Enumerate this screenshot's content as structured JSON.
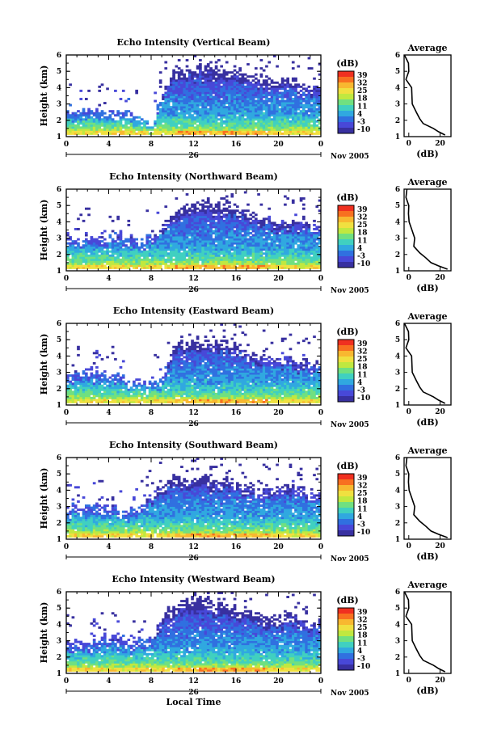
{
  "chart_data": {
    "type": "heatmap",
    "xlabel": "Local Time",
    "x_ticks": [
      "0",
      "4",
      "8",
      "12",
      "16",
      "20",
      "0"
    ],
    "date_label": "26",
    "month_year_label": "Nov 2005",
    "ylabel": "Height (km)",
    "y_ticks": [
      "1",
      "2",
      "3",
      "4",
      "5",
      "6"
    ],
    "xlim_hours": [
      0,
      24
    ],
    "ylim_km": [
      1,
      6
    ],
    "colorbar": {
      "label": "(dB)",
      "ticks": [
        "39",
        "32",
        "25",
        "18",
        "11",
        "4",
        "-3",
        "-10"
      ],
      "colors": [
        "#f03020",
        "#f87020",
        "#f8b830",
        "#f0e040",
        "#c0e840",
        "#70e080",
        "#40d0c0",
        "#30a8e0",
        "#3070e0",
        "#4848d8",
        "#3830a0"
      ]
    },
    "average_profile": {
      "title": "Average",
      "xlabel": "(dB)",
      "x_ticks": [
        "0",
        "20"
      ],
      "y_ticks": [
        "1",
        "2",
        "3",
        "4",
        "5",
        "6"
      ],
      "heights_km": [
        1.1,
        1.3,
        1.5,
        1.8,
        2.1,
        2.5,
        3.0,
        3.5,
        4.0,
        4.5,
        5.0,
        5.5,
        6.0
      ],
      "values_db": [
        24,
        19,
        15,
        10,
        7,
        4,
        3,
        2,
        1,
        -1,
        0,
        -1,
        -2
      ]
    },
    "panels": [
      {
        "title": "Echo Intensity (Vertical Beam)",
        "echo_top_km": [
          2.6,
          2.5,
          2.8,
          2.7,
          2.5,
          2.6,
          2.4,
          2.1,
          1.6,
          4.0,
          5.2,
          5.3,
          5.4,
          5.6,
          5.3,
          5.2,
          5.2,
          5.0,
          4.6,
          4.4,
          4.4,
          4.5,
          4.3,
          4.2
        ]
      },
      {
        "title": "Echo Intensity (Northward Beam)",
        "echo_top_km": [
          3.0,
          3.1,
          3.2,
          3.1,
          3.2,
          3.3,
          3.0,
          2.9,
          3.4,
          3.9,
          4.6,
          5.0,
          5.2,
          5.2,
          5.1,
          5.0,
          5.0,
          4.6,
          4.4,
          4.2,
          4.0,
          4.2,
          4.0,
          3.9
        ]
      },
      {
        "title": "Echo Intensity (Eastward Beam)",
        "echo_top_km": [
          2.9,
          2.9,
          3.0,
          3.1,
          3.0,
          2.8,
          2.6,
          2.4,
          2.3,
          2.6,
          4.8,
          5.0,
          5.0,
          5.0,
          4.9,
          4.9,
          4.8,
          4.3,
          4.0,
          3.9,
          3.8,
          3.9,
          3.6,
          3.6
        ]
      },
      {
        "title": "Echo Intensity (Southward Beam)",
        "echo_top_km": [
          3.0,
          3.0,
          3.1,
          3.2,
          3.1,
          2.9,
          2.8,
          3.2,
          3.8,
          4.5,
          4.7,
          4.8,
          4.9,
          4.8,
          4.7,
          4.6,
          4.5,
          4.3,
          4.2,
          4.1,
          4.1,
          4.2,
          4.0,
          3.9
        ]
      },
      {
        "title": "Echo Intensity (Westward Beam)",
        "echo_top_km": [
          3.0,
          3.1,
          3.0,
          3.1,
          3.2,
          3.1,
          3.0,
          3.0,
          3.3,
          4.4,
          5.3,
          5.4,
          5.6,
          5.5,
          5.3,
          5.2,
          5.0,
          4.8,
          4.6,
          4.4,
          4.3,
          4.6,
          4.4,
          4.2
        ]
      }
    ]
  }
}
